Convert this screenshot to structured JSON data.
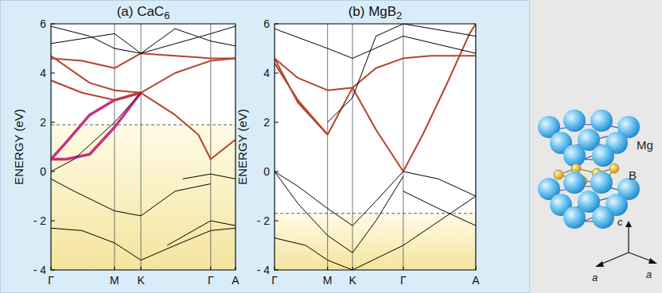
{
  "chart_data": [
    {
      "type": "line",
      "title": "(a) CaC6",
      "ylabel": "ENERGY (eV)",
      "xlim": [
        0,
        2.38
      ],
      "xticks": [
        {
          "value": 0,
          "label": "Γ"
        },
        {
          "value": 0.82,
          "label": "M"
        },
        {
          "value": 1.16,
          "label": "K"
        },
        {
          "value": 2.06,
          "label": "Γ"
        },
        {
          "value": 2.38,
          "label": "A"
        }
      ],
      "ylim": [
        -4,
        6
      ],
      "yticks": [
        {
          "value": -4,
          "label": "- 4"
        },
        {
          "value": -2,
          "label": "- 2"
        },
        0,
        2,
        4,
        6
      ],
      "grid": true,
      "fermi_level": 1.9,
      "series": [
        {
          "color": "#c8327e",
          "x": [
            0,
            0.2,
            0.5,
            0.82,
            1.16
          ],
          "values": [
            0.5,
            1.2,
            2.3,
            2.9,
            3.2
          ]
        },
        {
          "color": "#c8327e",
          "x": [
            0,
            0.2,
            0.5,
            0.82,
            1.16
          ],
          "values": [
            0.5,
            0.5,
            0.7,
            1.8,
            3.2
          ]
        },
        {
          "color": "#b5432c",
          "x": [
            0,
            0.4,
            0.82,
            1.16,
            1.6,
            2.06,
            2.38
          ],
          "values": [
            4.6,
            4.5,
            4.2,
            4.8,
            4.7,
            4.6,
            4.6
          ]
        },
        {
          "color": "#b5432c",
          "x": [
            0,
            0.4,
            0.82,
            1.16,
            1.6,
            1.9,
            2.06,
            2.38
          ],
          "values": [
            3.7,
            3.2,
            2.9,
            3.2,
            2.3,
            1.5,
            0.5,
            1.3
          ]
        },
        {
          "color": "#b5432c",
          "x": [
            0,
            0.5,
            0.82,
            1.16,
            1.6,
            2.06,
            2.38
          ],
          "values": [
            4.7,
            3.6,
            3.3,
            3.2,
            4.0,
            4.5,
            4.6
          ]
        },
        {
          "color": "#000000",
          "x": [
            0,
            0.3,
            0.82,
            1.16
          ],
          "values": [
            0.0,
            0.5,
            2.0,
            3.2
          ]
        },
        {
          "color": "#000000",
          "x": [
            0,
            0.3,
            0.82,
            1.16,
            1.6,
            2.06
          ],
          "values": [
            -0.3,
            -0.8,
            -1.6,
            -1.8,
            -0.8,
            -0.5
          ]
        },
        {
          "color": "#000000",
          "x": [
            0,
            0.4,
            0.82,
            1.16,
            1.6,
            2.06,
            2.38
          ],
          "values": [
            -2.3,
            -2.4,
            -2.9,
            -3.6,
            -3.0,
            -2.4,
            -2.3
          ]
        },
        {
          "color": "#000000",
          "x": [
            0,
            0.5,
            0.82,
            1.16,
            2.06,
            2.38
          ],
          "values": [
            5.9,
            5.5,
            5.0,
            4.8,
            5.6,
            5.9
          ]
        },
        {
          "color": "#000000",
          "x": [
            0,
            0.82,
            1.16,
            1.6,
            2.06,
            2.38
          ],
          "values": [
            5.2,
            5.6,
            4.8,
            5.8,
            5.3,
            5.1
          ]
        },
        {
          "color": "#000000",
          "x": [
            1.7,
            2.06,
            2.38
          ],
          "values": [
            -0.3,
            -0.1,
            -0.3
          ]
        },
        {
          "color": "#000000",
          "x": [
            1.5,
            2.06,
            2.38
          ],
          "values": [
            -3.0,
            -2.0,
            -2.2
          ]
        }
      ]
    },
    {
      "type": "line",
      "title": "(b) MgB2",
      "ylabel": "ENERGY (eV)",
      "xlim": [
        0,
        2.58
      ],
      "xticks": [
        {
          "value": 0,
          "label": "Γ"
        },
        {
          "value": 0.68,
          "label": "M"
        },
        {
          "value": 1.0,
          "label": "K"
        },
        {
          "value": 1.65,
          "label": "Γ"
        },
        {
          "value": 2.58,
          "label": "A"
        }
      ],
      "ylim": [
        -4,
        6
      ],
      "yticks": [
        {
          "value": -4,
          "label": "- 4"
        },
        {
          "value": -2,
          "label": "- 2"
        },
        0,
        2,
        4,
        6
      ],
      "grid": true,
      "fermi_level": -1.7,
      "series": [
        {
          "color": "#b5432c",
          "x": [
            0,
            0.3,
            0.68,
            1.0,
            1.3,
            1.65,
            1.9,
            2.2,
            2.5,
            2.58
          ],
          "values": [
            4.6,
            2.8,
            1.5,
            3.4,
            1.7,
            0.0,
            1.5,
            3.5,
            5.6,
            6.0
          ]
        },
        {
          "color": "#b5432c",
          "x": [
            0,
            0.3,
            0.68,
            1.0,
            1.3,
            1.65,
            2.0,
            2.58
          ],
          "values": [
            4.6,
            3.8,
            3.3,
            3.4,
            4.2,
            4.6,
            4.7,
            4.7
          ]
        },
        {
          "color": "#b5432c",
          "x": [
            0,
            0.3,
            0.68
          ],
          "values": [
            4.4,
            2.9,
            1.5
          ]
        },
        {
          "color": "#000000",
          "x": [
            0,
            0.3,
            0.68,
            1.0,
            1.3,
            1.65,
            2.1,
            2.58
          ],
          "values": [
            0.0,
            -0.6,
            -1.5,
            -2.2,
            -1.2,
            0.0,
            -0.3,
            -1.0
          ]
        },
        {
          "color": "#000000",
          "x": [
            0,
            0.3,
            0.68,
            1.0,
            1.3,
            1.65
          ],
          "values": [
            0.0,
            -1.3,
            -2.6,
            -3.3,
            -2.0,
            -0.2
          ]
        },
        {
          "color": "#000000",
          "x": [
            0,
            0.4,
            0.68,
            1.0,
            1.65,
            2.58
          ],
          "values": [
            -2.7,
            -3.0,
            -3.6,
            -4.0,
            -3.0,
            -1.0
          ]
        },
        {
          "color": "#000000",
          "x": [
            0,
            0.68,
            1.0,
            1.65,
            2.58
          ],
          "values": [
            5.8,
            5.0,
            4.6,
            5.5,
            4.8
          ]
        },
        {
          "color": "#000000",
          "x": [
            0.68,
            1.0,
            1.3,
            1.65,
            2.58
          ],
          "values": [
            2.0,
            3.0,
            5.5,
            6.0,
            5.5
          ]
        },
        {
          "color": "#000000",
          "x": [
            1.65,
            2.1,
            2.58
          ],
          "values": [
            -0.8,
            -1.5,
            -2.2
          ]
        }
      ]
    }
  ],
  "diagram": {
    "labels": [
      "Mg",
      "B",
      "c",
      "a",
      "a"
    ]
  }
}
